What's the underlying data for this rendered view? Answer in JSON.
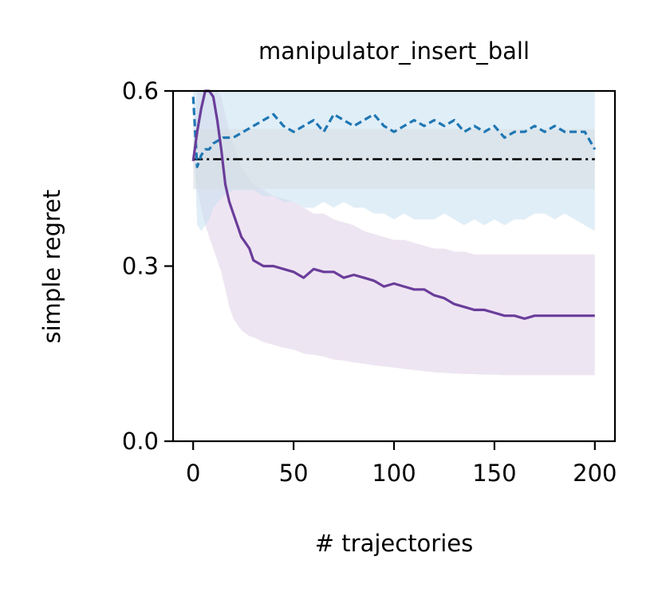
{
  "chart_data": {
    "type": "line",
    "title": "manipulator_insert_ball",
    "xlabel": "# trajectories",
    "ylabel": "simple regret",
    "xlim": [
      -10,
      210
    ],
    "ylim": [
      0,
      0.6
    ],
    "xticks": [
      0,
      50,
      100,
      150,
      200
    ],
    "xtick_labels": [
      "0",
      "50",
      "100",
      "150",
      "200"
    ],
    "yticks": [
      0.0,
      0.3,
      0.6
    ],
    "ytick_labels": [
      "0.0",
      "0.3",
      "0.6"
    ],
    "grid": false,
    "legend": "none",
    "colors": {
      "purple": "#6a3d9a",
      "purple_band": "#e8dcee",
      "blue": "#1f77b4",
      "blue_band": "#c6e0f1",
      "baseline": "#000000",
      "baseline_band": "#d7dfe3"
    },
    "series": [
      {
        "style": "solid",
        "color": "#6a3d9a",
        "x": [
          0,
          2,
          4,
          6,
          8,
          10,
          12,
          14,
          16,
          18,
          20,
          22,
          24,
          26,
          28,
          30,
          35,
          40,
          45,
          50,
          55,
          60,
          65,
          70,
          75,
          80,
          85,
          90,
          95,
          100,
          105,
          110,
          115,
          120,
          125,
          130,
          135,
          140,
          145,
          150,
          155,
          160,
          165,
          170,
          180,
          190,
          200
        ],
        "y": [
          0.48,
          0.53,
          0.57,
          0.6,
          0.6,
          0.59,
          0.55,
          0.5,
          0.44,
          0.41,
          0.39,
          0.37,
          0.35,
          0.34,
          0.33,
          0.31,
          0.3,
          0.3,
          0.295,
          0.29,
          0.28,
          0.295,
          0.29,
          0.29,
          0.28,
          0.285,
          0.28,
          0.275,
          0.265,
          0.27,
          0.265,
          0.26,
          0.26,
          0.25,
          0.245,
          0.235,
          0.23,
          0.225,
          0.225,
          0.22,
          0.215,
          0.215,
          0.21,
          0.215,
          0.215,
          0.215,
          0.215
        ],
        "lower": [
          0.48,
          0.43,
          0.4,
          0.37,
          0.35,
          0.33,
          0.31,
          0.29,
          0.26,
          0.23,
          0.21,
          0.2,
          0.19,
          0.185,
          0.18,
          0.178,
          0.17,
          0.165,
          0.16,
          0.157,
          0.15,
          0.148,
          0.145,
          0.14,
          0.138,
          0.135,
          0.133,
          0.13,
          0.128,
          0.126,
          0.124,
          0.122,
          0.12,
          0.118,
          0.117,
          0.116,
          0.115,
          0.115,
          0.114,
          0.114,
          0.113,
          0.113,
          0.113,
          0.113,
          0.113,
          0.113,
          0.113
        ],
        "upper": [
          0.48,
          0.6,
          0.6,
          0.6,
          0.6,
          0.6,
          0.6,
          0.59,
          0.56,
          0.53,
          0.51,
          0.49,
          0.47,
          0.46,
          0.45,
          0.44,
          0.43,
          0.42,
          0.415,
          0.41,
          0.4,
          0.39,
          0.39,
          0.38,
          0.375,
          0.37,
          0.36,
          0.355,
          0.35,
          0.345,
          0.345,
          0.34,
          0.335,
          0.33,
          0.33,
          0.325,
          0.325,
          0.32,
          0.32,
          0.32,
          0.32,
          0.32,
          0.32,
          0.32,
          0.32,
          0.32,
          0.32
        ]
      },
      {
        "style": "dashed",
        "color": "#1f77b4",
        "x": [
          0,
          2,
          4,
          6,
          8,
          10,
          15,
          20,
          25,
          30,
          35,
          40,
          45,
          50,
          55,
          60,
          65,
          70,
          75,
          80,
          85,
          90,
          95,
          100,
          105,
          110,
          115,
          120,
          125,
          130,
          135,
          140,
          145,
          150,
          155,
          160,
          165,
          170,
          175,
          180,
          185,
          190,
          195,
          200
        ],
        "y": [
          0.59,
          0.47,
          0.49,
          0.5,
          0.5,
          0.51,
          0.52,
          0.52,
          0.53,
          0.54,
          0.55,
          0.56,
          0.54,
          0.53,
          0.54,
          0.55,
          0.53,
          0.56,
          0.55,
          0.54,
          0.55,
          0.56,
          0.54,
          0.53,
          0.54,
          0.55,
          0.54,
          0.55,
          0.54,
          0.55,
          0.53,
          0.54,
          0.53,
          0.54,
          0.52,
          0.53,
          0.53,
          0.54,
          0.53,
          0.54,
          0.53,
          0.53,
          0.53,
          0.5
        ],
        "lower": [
          0.55,
          0.37,
          0.36,
          0.37,
          0.38,
          0.4,
          0.42,
          0.43,
          0.43,
          0.43,
          0.42,
          0.42,
          0.41,
          0.41,
          0.4,
          0.4,
          0.41,
          0.4,
          0.41,
          0.4,
          0.4,
          0.39,
          0.39,
          0.38,
          0.39,
          0.38,
          0.38,
          0.38,
          0.39,
          0.38,
          0.37,
          0.38,
          0.37,
          0.38,
          0.37,
          0.38,
          0.38,
          0.39,
          0.39,
          0.38,
          0.39,
          0.38,
          0.37,
          0.36
        ],
        "upper": [
          0.6,
          0.6,
          0.6,
          0.6,
          0.6,
          0.6,
          0.6,
          0.6,
          0.6,
          0.6,
          0.6,
          0.6,
          0.6,
          0.6,
          0.6,
          0.6,
          0.6,
          0.6,
          0.6,
          0.6,
          0.6,
          0.6,
          0.6,
          0.6,
          0.6,
          0.6,
          0.6,
          0.6,
          0.6,
          0.6,
          0.6,
          0.6,
          0.6,
          0.6,
          0.6,
          0.6,
          0.6,
          0.6,
          0.6,
          0.6,
          0.6,
          0.6,
          0.6,
          0.6
        ]
      },
      {
        "style": "dashdot",
        "color": "#000000",
        "x": [
          0,
          200
        ],
        "y": [
          0.483,
          0.483
        ],
        "lower": [
          0.432,
          0.432
        ],
        "upper": [
          0.535,
          0.535
        ]
      }
    ]
  }
}
